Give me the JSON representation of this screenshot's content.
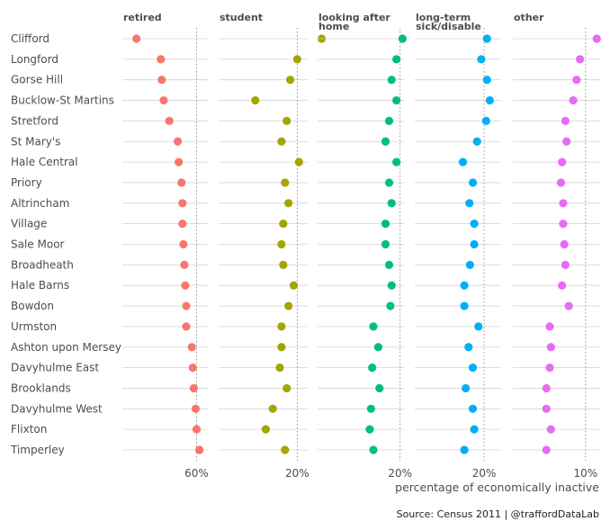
{
  "chart_data": {
    "type": "scatter",
    "xlabel": "percentage of economically inactive",
    "caption": "Source: Census 2011 | @traffordDataLab",
    "wards": [
      "Clifford",
      "Longford",
      "Gorse Hill",
      "Bucklow-St Martins",
      "Stretford",
      "St Mary's",
      "Hale Central",
      "Priory",
      "Altrincham",
      "Village",
      "Sale Moor",
      "Broadheath",
      "Hale Barns",
      "Bowdon",
      "Urmston",
      "Ashton upon Mersey",
      "Davyhulme East",
      "Brooklands",
      "Davyhulme West",
      "Flixton",
      "Timperley"
    ],
    "facets": [
      {
        "title_lines": [
          "retired"
        ],
        "color": "#F8766D",
        "tick_value": 60,
        "tick_label": "60%",
        "xlim": [
          20.5,
          66
        ],
        "values": [
          28,
          41,
          41.5,
          42.5,
          45.5,
          50,
          50.5,
          52,
          52.5,
          52.5,
          53,
          53.5,
          54,
          54.5,
          54.5,
          57.5,
          58,
          58.5,
          59.5,
          60,
          61.5
        ]
      },
      {
        "title_lines": [
          "student"
        ],
        "color": "#A3A500",
        "tick_value": 20,
        "tick_label": "20%",
        "xlim": [
          -2.5,
          23
        ],
        "values": [
          27,
          20,
          18,
          8,
          17,
          15.5,
          20.5,
          16.5,
          17.5,
          16,
          15.5,
          16,
          19,
          17.5,
          15.5,
          15.5,
          15,
          17,
          13,
          11,
          16.5
        ]
      },
      {
        "title_lines": [
          "looking after",
          "home"
        ],
        "color": "#00BF7D",
        "tick_value": 20,
        "tick_label": "20%",
        "xlim": [
          -14,
          21.6
        ],
        "values": [
          21,
          18.5,
          16.5,
          18.5,
          15.5,
          14,
          18.5,
          15.5,
          16.5,
          14,
          14,
          15.5,
          16.5,
          16,
          9,
          11,
          8.5,
          11.5,
          8,
          7.5,
          9
        ]
      },
      {
        "title_lines": [
          "long-term",
          "sick/disable"
        ],
        "color": "#00B0F6",
        "tick_value": 20,
        "tick_label": "20%",
        "xlim": [
          -4.5,
          26
        ],
        "values": [
          21,
          19,
          21,
          22,
          20.7,
          17.5,
          12.5,
          16,
          14.8,
          16.5,
          16.5,
          15,
          13,
          13,
          18,
          14.5,
          16,
          13.5,
          16,
          16.5,
          13
        ]
      },
      {
        "title_lines": [
          "other"
        ],
        "color": "#E76BF3",
        "tick_value": 10,
        "tick_label": "10%",
        "xlim": [
          3.5,
          11.3
        ],
        "values": [
          11,
          9.5,
          9.2,
          8.9,
          8.2,
          8.3,
          7.9,
          7.8,
          8,
          8,
          8.1,
          8.2,
          7.9,
          8.5,
          6.8,
          6.9,
          6.8,
          6.5,
          6.5,
          6.9,
          6.5
        ]
      }
    ]
  }
}
